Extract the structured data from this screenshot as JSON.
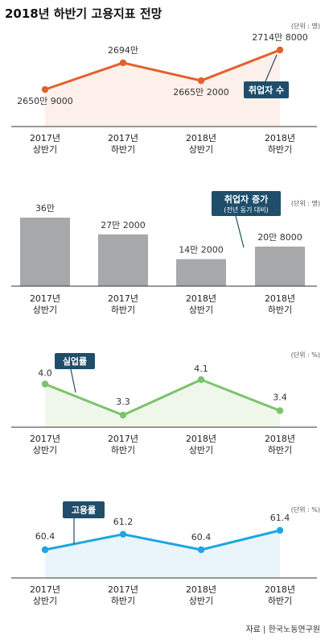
{
  "title": "2018년 하반기 고용지표 전망",
  "source": "자료 | 한국노동연구원",
  "colors": {
    "employed_line": "#E4602B",
    "employed_fill": "#FDEFEA",
    "bar": "#A7A8AA",
    "unemployment_line": "#7CC36A",
    "unemployment_fill": "#EFF7EA",
    "employment_line": "#1FA6E2",
    "employment_fill": "#E9F5FB",
    "callout": "#1F4E6B"
  },
  "chart_data": [
    {
      "type": "line",
      "unit": "(단위 : 명)",
      "categories": [
        "2017년|상반기",
        "2017년|하반기",
        "2018년|상반기",
        "2018년|하반기"
      ],
      "series": [
        {
          "name": "취업자 수",
          "values": [
            26509000,
            26940000,
            26652000,
            27148000
          ]
        }
      ],
      "data_labels": [
        "2650만 9000",
        "2694만",
        "2665만 2000",
        "2714만 8000"
      ],
      "callout": "취업자 수"
    },
    {
      "type": "bar",
      "unit": "(단위 : 명)",
      "categories": [
        "2017년|상반기",
        "2017년|하반기",
        "2018년|상반기",
        "2018년|하반기"
      ],
      "values": [
        360000,
        272000,
        142000,
        208000
      ],
      "data_labels": [
        "36만",
        "27만 2000",
        "14만 2000",
        "20만 8000"
      ],
      "callout": "취업자 증가",
      "callout_sub": "(전년 동기 대비)"
    },
    {
      "type": "line",
      "unit": "(단위 : %)",
      "categories": [
        "2017년|상반기",
        "2017년|하반기",
        "2018년|상반기",
        "2018년|하반기"
      ],
      "series": [
        {
          "name": "실업률",
          "values": [
            4.0,
            3.3,
            4.1,
            3.4
          ]
        }
      ],
      "data_labels": [
        "4.0",
        "3.3",
        "4.1",
        "3.4"
      ],
      "callout": "실업률"
    },
    {
      "type": "line",
      "unit": "(단위 : %)",
      "categories": [
        "2017년|상반기",
        "2017년|하반기",
        "2018년|상반기",
        "2018년|하반기"
      ],
      "series": [
        {
          "name": "고용률",
          "values": [
            60.4,
            61.2,
            60.4,
            61.4
          ]
        }
      ],
      "data_labels": [
        "60.4",
        "61.2",
        "60.4",
        "61.4"
      ],
      "callout": "고용률"
    }
  ]
}
